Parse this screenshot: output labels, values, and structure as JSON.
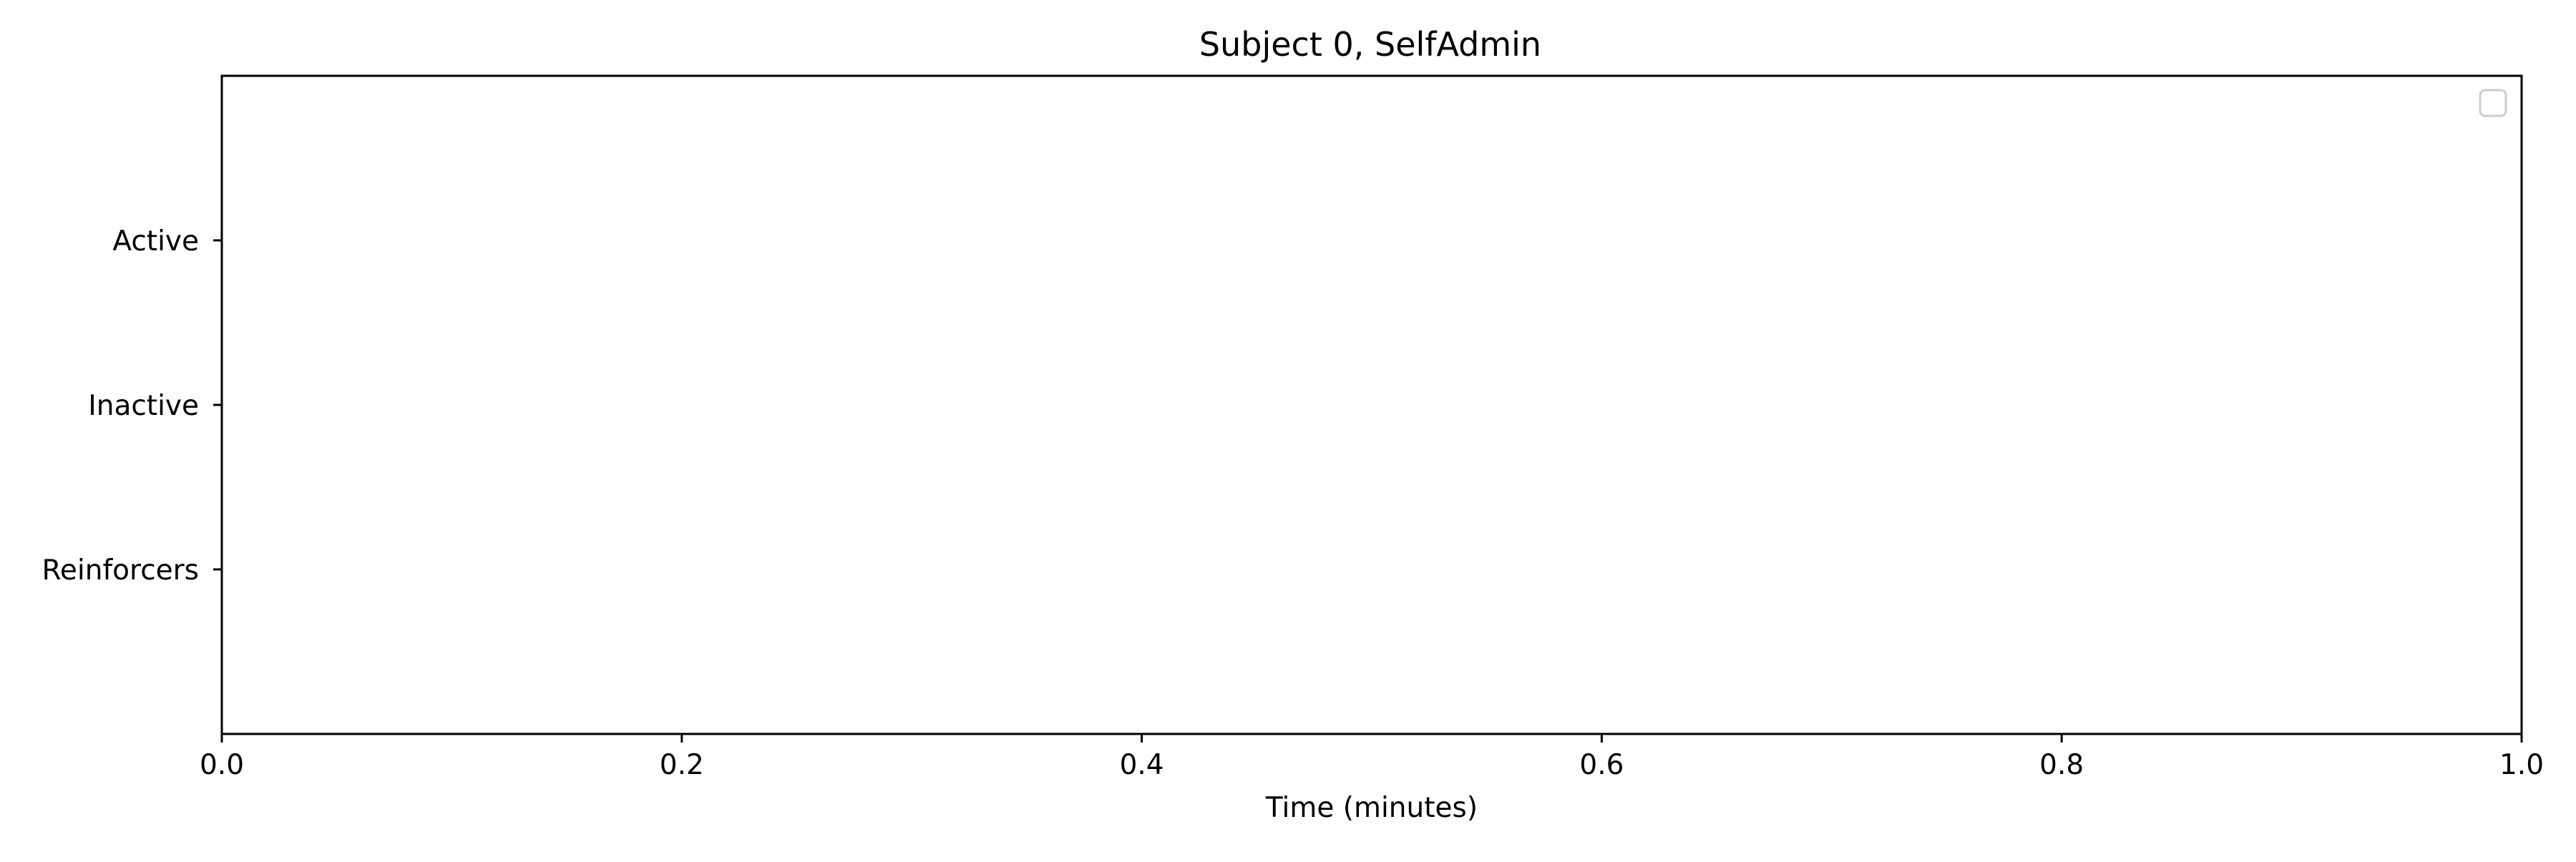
{
  "chart_data": {
    "type": "scatter",
    "title": "Subject 0, SelfAdmin",
    "xlabel": "Time (minutes)",
    "ylabel": "",
    "xlim": [
      0.0,
      1.0
    ],
    "x_ticks": [
      "0.0",
      "0.2",
      "0.4",
      "0.6",
      "0.8",
      "1.0"
    ],
    "categories": [
      "Active",
      "Inactive",
      "Reinforcers"
    ],
    "series": [],
    "legend": {
      "placement": "upper right",
      "entries": []
    },
    "grid": false
  },
  "colors": {
    "axes": "#000000",
    "background": "#ffffff",
    "legend_border": "#cccccc"
  }
}
